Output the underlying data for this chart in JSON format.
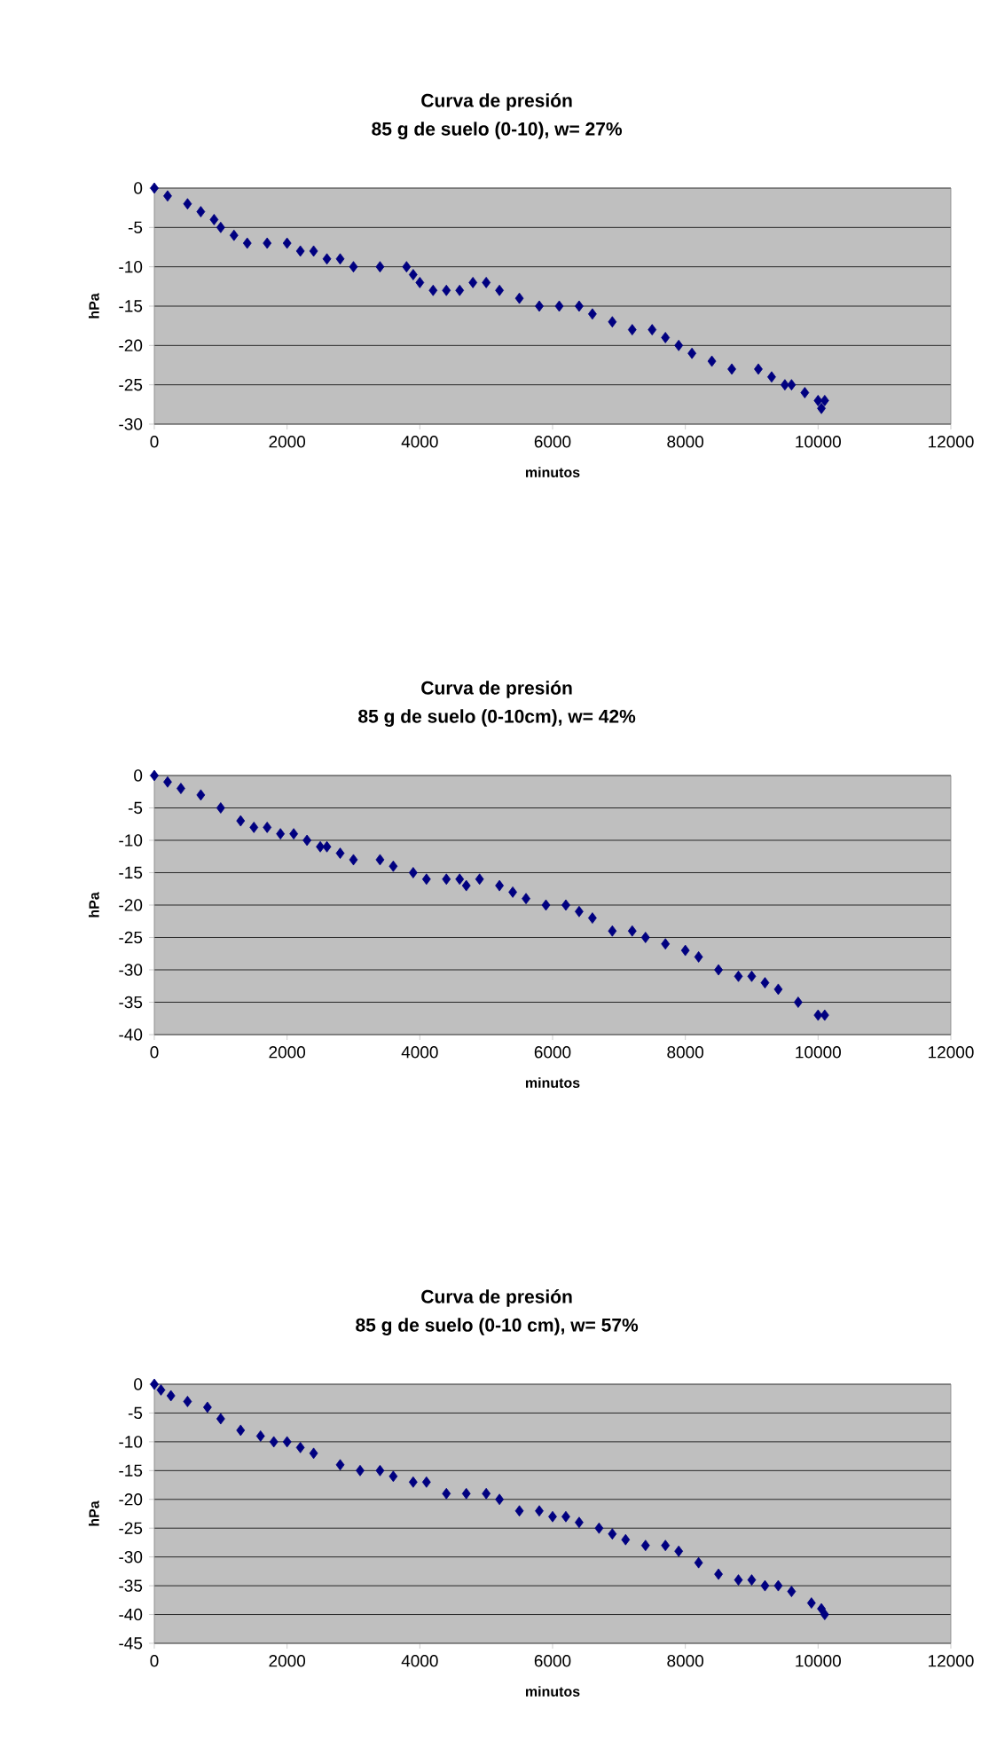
{
  "chart_data": [
    {
      "type": "scatter",
      "title": "Curva de presión",
      "subtitle": "85 g de suelo (0-10), w= 27%",
      "xlabel": "minutos",
      "ylabel": "hPa",
      "marker": "diamond",
      "grid": "y",
      "xlim": [
        0,
        12000
      ],
      "ylim": [
        -30,
        0
      ],
      "xticks": [
        0,
        2000,
        4000,
        6000,
        8000,
        10000,
        12000
      ],
      "yticks": [
        -30,
        -25,
        -20,
        -15,
        -10,
        -5,
        0
      ],
      "series": [
        {
          "color": "#000080",
          "x": [
            0,
            200,
            500,
            700,
            900,
            1000,
            1200,
            1400,
            1700,
            2000,
            2200,
            2400,
            2600,
            2800,
            3000,
            3400,
            3800,
            3900,
            4000,
            4200,
            4400,
            4600,
            4800,
            5000,
            5200,
            5500,
            5800,
            6100,
            6400,
            6600,
            6900,
            7200,
            7500,
            7700,
            7900,
            8100,
            8400,
            8700,
            9100,
            9300,
            9500,
            9600,
            9800,
            10000,
            10050,
            10100
          ],
          "values": [
            0,
            -1,
            -2,
            -3,
            -4,
            -5,
            -6,
            -7,
            -7,
            -7,
            -8,
            -8,
            -9,
            -9,
            -10,
            -10,
            -10,
            -11,
            -12,
            -13,
            -13,
            -13,
            -12,
            -12,
            -13,
            -14,
            -15,
            -15,
            -15,
            -16,
            -17,
            -18,
            -18,
            -19,
            -20,
            -21,
            -22,
            -23,
            -23,
            -24,
            -25,
            -25,
            -26,
            -27,
            -28,
            -27
          ]
        }
      ]
    },
    {
      "type": "scatter",
      "title": "Curva de presión",
      "subtitle": "85 g de suelo (0-10cm), w= 42%",
      "xlabel": "minutos",
      "ylabel": "hPa",
      "marker": "diamond",
      "grid": "y",
      "xlim": [
        0,
        12000
      ],
      "ylim": [
        -40,
        0
      ],
      "xticks": [
        0,
        2000,
        4000,
        6000,
        8000,
        10000,
        12000
      ],
      "yticks": [
        -40,
        -35,
        -30,
        -25,
        -20,
        -15,
        -10,
        -5,
        0
      ],
      "series": [
        {
          "color": "#000080",
          "x": [
            0,
            200,
            400,
            700,
            1000,
            1300,
            1500,
            1700,
            1900,
            2100,
            2300,
            2500,
            2600,
            2800,
            3000,
            3400,
            3600,
            3900,
            4100,
            4400,
            4600,
            4700,
            4900,
            5200,
            5400,
            5600,
            5900,
            6200,
            6400,
            6600,
            6900,
            7200,
            7400,
            7700,
            8000,
            8200,
            8500,
            8800,
            9000,
            9200,
            9400,
            9700,
            10000,
            10100
          ],
          "values": [
            0,
            -1,
            -2,
            -3,
            -5,
            -7,
            -8,
            -8,
            -9,
            -9,
            -10,
            -11,
            -11,
            -12,
            -13,
            -13,
            -14,
            -15,
            -16,
            -16,
            -16,
            -17,
            -16,
            -17,
            -18,
            -19,
            -20,
            -20,
            -21,
            -22,
            -24,
            -24,
            -25,
            -26,
            -27,
            -28,
            -30,
            -31,
            -31,
            -32,
            -33,
            -35,
            -37,
            -37
          ]
        }
      ]
    },
    {
      "type": "scatter",
      "title": "Curva de presión",
      "subtitle": "85 g de suelo (0-10 cm), w= 57%",
      "xlabel": "minutos",
      "ylabel": "hPa",
      "marker": "diamond",
      "grid": "y",
      "xlim": [
        0,
        12000
      ],
      "ylim": [
        -45,
        0
      ],
      "xticks": [
        0,
        2000,
        4000,
        6000,
        8000,
        10000,
        12000
      ],
      "yticks": [
        -45,
        -40,
        -35,
        -30,
        -25,
        -20,
        -15,
        -10,
        -5,
        0
      ],
      "series": [
        {
          "color": "#000080",
          "x": [
            0,
            100,
            250,
            500,
            800,
            1000,
            1300,
            1600,
            1800,
            2000,
            2200,
            2400,
            2800,
            3100,
            3400,
            3600,
            3900,
            4100,
            4400,
            4700,
            5000,
            5200,
            5500,
            5800,
            6000,
            6200,
            6400,
            6700,
            6900,
            7100,
            7400,
            7700,
            7900,
            8200,
            8500,
            8800,
            9000,
            9200,
            9400,
            9600,
            9900,
            10050,
            10100
          ],
          "values": [
            0,
            -1,
            -2,
            -3,
            -4,
            -6,
            -8,
            -9,
            -10,
            -10,
            -11,
            -12,
            -14,
            -15,
            -15,
            -16,
            -17,
            -17,
            -19,
            -19,
            -19,
            -20,
            -22,
            -22,
            -23,
            -23,
            -24,
            -25,
            -26,
            -27,
            -28,
            -28,
            -29,
            -31,
            -33,
            -34,
            -34,
            -35,
            -35,
            -36,
            -38,
            -39,
            -40
          ]
        }
      ]
    }
  ]
}
